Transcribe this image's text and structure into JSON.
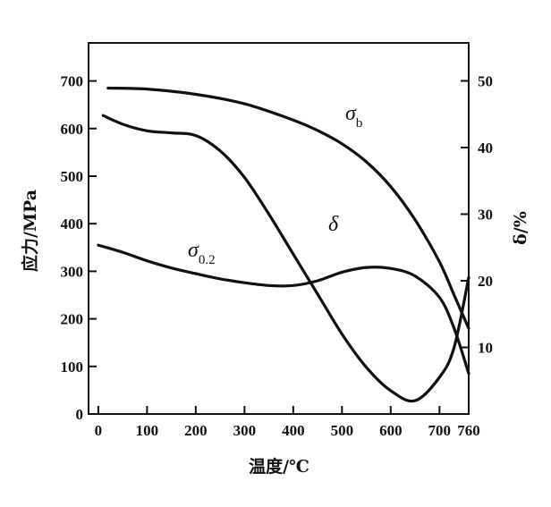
{
  "chart_data": {
    "type": "line",
    "xlabel": "温度/℃",
    "ylabel_left": "应力/MPa",
    "ylabel_right": "δ/%",
    "xlim": [
      -20,
      760
    ],
    "ylim_left": [
      0,
      780
    ],
    "ylim_right": [
      0,
      55.7
    ],
    "x_ticks": [
      0,
      100,
      200,
      300,
      400,
      500,
      600,
      700,
      760
    ],
    "y_left_ticks": [
      0,
      100,
      200,
      300,
      400,
      500,
      600,
      700
    ],
    "y_right_ticks": [
      10,
      20,
      30,
      40,
      50
    ],
    "grid": false,
    "series": [
      {
        "name": "σb",
        "axis": "left",
        "x": [
          20,
          100,
          200,
          300,
          400,
          450,
          500,
          550,
          600,
          650,
          700,
          730,
          760
        ],
        "y": [
          685,
          683,
          672,
          652,
          618,
          596,
          568,
          530,
          478,
          408,
          320,
          250,
          180
        ]
      },
      {
        "name": "δ",
        "axis": "right",
        "x": [
          10,
          50,
          100,
          150,
          200,
          250,
          300,
          350,
          400,
          450,
          500,
          550,
          600,
          650,
          700,
          730,
          760
        ],
        "y": [
          44.8,
          43.5,
          42.5,
          42.2,
          41.8,
          39.5,
          35.5,
          30.0,
          24.0,
          18.0,
          12.0,
          7.0,
          3.5,
          2.0,
          5.5,
          10.0,
          20.5
        ]
      },
      {
        "name": "σ0.2",
        "axis": "left",
        "x": [
          0,
          50,
          100,
          150,
          200,
          250,
          300,
          350,
          400,
          450,
          500,
          550,
          600,
          650,
          700,
          730,
          760
        ],
        "y": [
          355,
          340,
          322,
          307,
          295,
          284,
          276,
          270,
          270,
          280,
          298,
          308,
          306,
          290,
          245,
          180,
          85
        ]
      }
    ]
  }
}
